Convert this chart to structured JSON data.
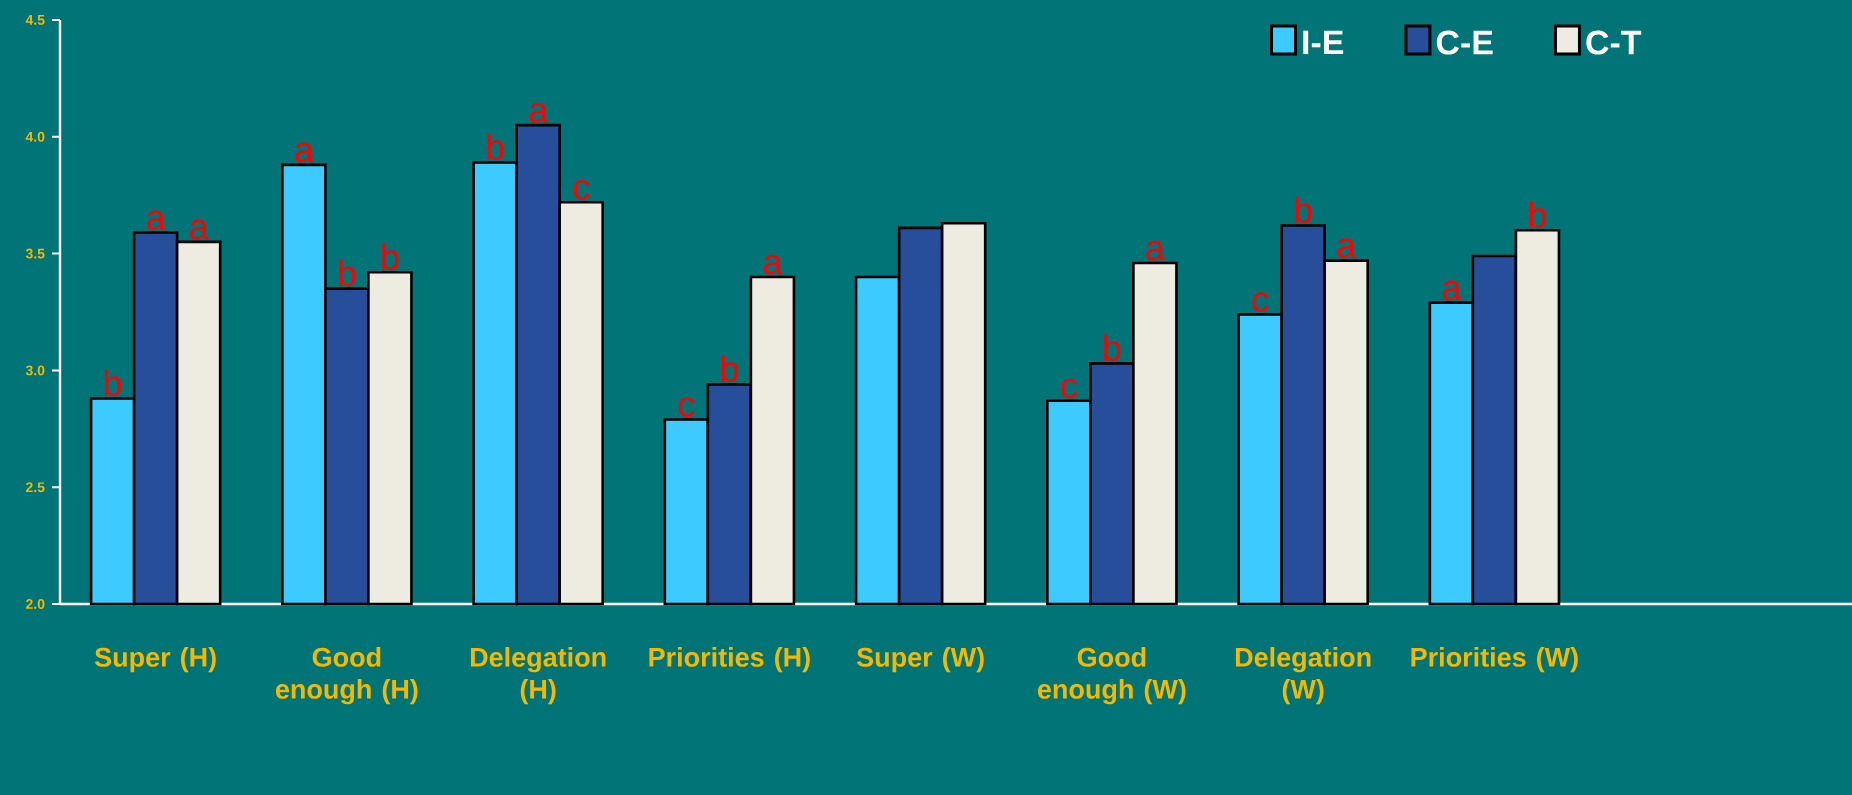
{
  "chart_data": {
    "type": "bar",
    "categories": [
      "Super (H)",
      "Good enough (H)",
      "Delegation (H)",
      "Priorities (H)",
      "Super (W)",
      "Good enough (W)",
      "Delegation (W)",
      "Priorities (W)"
    ],
    "series": [
      {
        "name": "I-E",
        "color": "#3dcbff",
        "values": [
          2.88,
          3.88,
          3.89,
          2.79,
          3.4,
          2.87,
          3.24,
          3.29
        ],
        "value_labels": [
          "b",
          "a",
          "b",
          "c",
          null,
          "c",
          "c",
          "a"
        ]
      },
      {
        "name": "C-E",
        "color": "#264e9a",
        "values": [
          3.59,
          3.35,
          4.05,
          2.94,
          3.61,
          3.03,
          3.62,
          3.49
        ],
        "value_labels": [
          "a",
          "b",
          "a",
          "b",
          null,
          "b",
          "b",
          null
        ]
      },
      {
        "name": "C-T",
        "color": "#eeebe0",
        "values": [
          3.55,
          3.42,
          3.72,
          3.4,
          3.63,
          3.46,
          3.47,
          3.6
        ],
        "value_labels": [
          "a",
          "b",
          "c",
          "a",
          null,
          "a",
          "a",
          "b"
        ]
      }
    ],
    "ylim": [
      2,
      4.5
    ],
    "yticks": [
      {
        "value": 2,
        "label": "2.0"
      },
      {
        "value": 2.5,
        "label": "2.5"
      },
      {
        "value": 3,
        "label": "3.0"
      },
      {
        "value": 3.5,
        "label": "3.5"
      },
      {
        "value": 4,
        "label": "4.0"
      },
      {
        "value": 4.5,
        "label": "4.5"
      }
    ],
    "legend": "top right",
    "grid": false
  }
}
